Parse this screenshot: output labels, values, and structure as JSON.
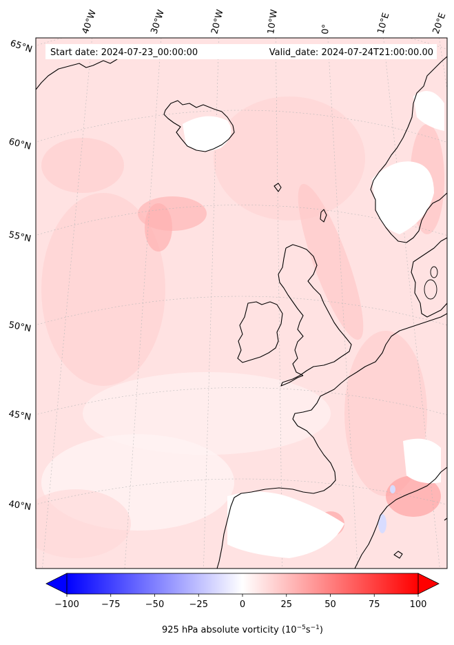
{
  "header": {
    "start_date": "Start date: 2024-07-23_00:00:00",
    "valid_date": "Valid_date: 2024-07-24T21:00:00.00"
  },
  "longitude_labels": [
    "40°W",
    "30°W",
    "20°W",
    "10°W",
    "0°",
    "10°E",
    "20°E"
  ],
  "latitude_labels": [
    "65°N",
    "60°N",
    "55°N",
    "50°N",
    "45°N",
    "40°N"
  ],
  "colorbar": {
    "ticks": [
      "−100",
      "−75",
      "−50",
      "−25",
      "0",
      "25",
      "50",
      "75",
      "100"
    ],
    "vmin": -100,
    "vmax": 100,
    "label_main": "925 hPa absolute vorticity (10",
    "label_sup1": "−5",
    "label_mid": "s",
    "label_sup2": "−1",
    "label_end": ")",
    "colors": {
      "negative": "#0000ff",
      "zero": "#ffffff",
      "positive": "#ff0000"
    }
  },
  "map": {
    "field_color": "#ffdada",
    "coastline_color": "#000000",
    "gridline_color": "#b0b0b0"
  }
}
